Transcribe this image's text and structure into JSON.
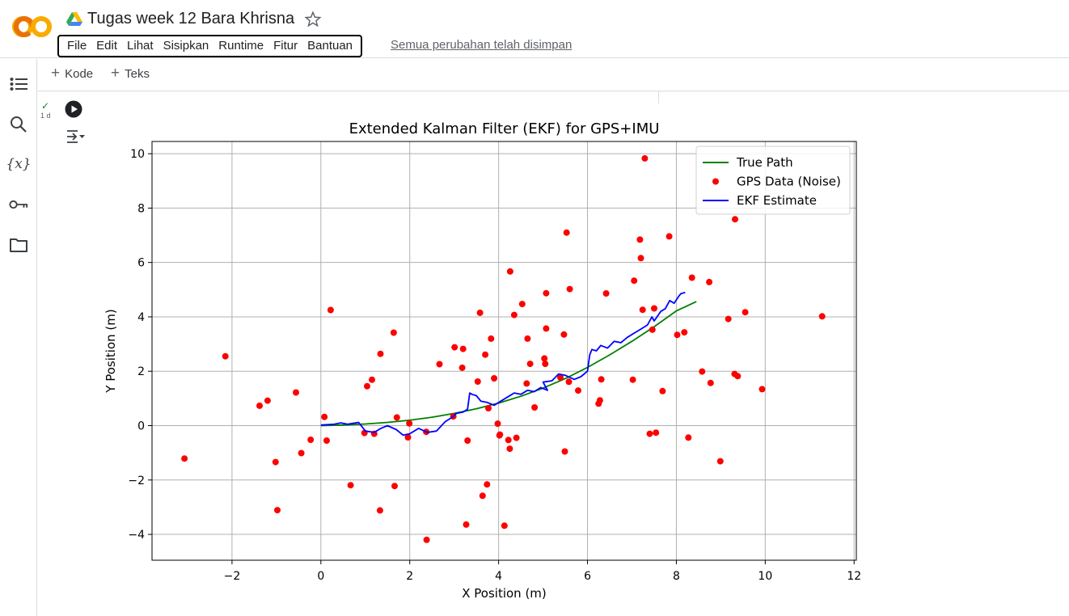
{
  "header": {
    "title": "Tugas week 12 Bara Khrisna",
    "logo": "colab-logo",
    "menu": [
      "File",
      "Edit",
      "Lihat",
      "Sisipkan",
      "Runtime",
      "Fitur",
      "Bantuan"
    ],
    "save_status": "Semua perubahan telah disimpan"
  },
  "sidebar": {
    "icons": [
      "table-of-contents-icon",
      "search-icon",
      "variables-icon",
      "secrets-key-icon",
      "files-folder-icon"
    ],
    "variables_glyph": "{x}"
  },
  "toolbar": {
    "add_code_label": "Kode",
    "add_text_label": "Teks"
  },
  "cell": {
    "status_check": "✓",
    "exec_time": "1 d"
  },
  "colors": {
    "true_path": "#008000",
    "gps": "#ff0000",
    "ekf": "#0000ff",
    "grid": "#b0b0b0",
    "colab_orange": "#f9ab00"
  },
  "chart_data": {
    "type": "scatter",
    "title": "Extended Kalman Filter (EKF) for GPS+IMU",
    "xlabel": "X Position (m)",
    "ylabel": "Y Position (m)",
    "xlim": [
      -3.8,
      12.05
    ],
    "ylim": [
      -4.95,
      10.45
    ],
    "xticks": [
      -2,
      0,
      2,
      4,
      6,
      8,
      10,
      12
    ],
    "yticks": [
      -4,
      -2,
      0,
      2,
      4,
      6,
      8,
      10
    ],
    "xtick_labels": [
      "−2",
      "0",
      "2",
      "4",
      "6",
      "8",
      "10",
      "12"
    ],
    "ytick_labels": [
      "−4",
      "−2",
      "0",
      "2",
      "4",
      "6",
      "8",
      "10"
    ],
    "grid": true,
    "legend_position": "top-right",
    "series": [
      {
        "name": "True Path",
        "kind": "line",
        "x": [
          0,
          0.5,
          1,
          1.5,
          2,
          2.5,
          3,
          3.5,
          4,
          4.5,
          5,
          5.5,
          6,
          6.5,
          7,
          7.5,
          8,
          8.45
        ],
        "y": [
          0,
          0.02,
          0.06,
          0.12,
          0.2,
          0.31,
          0.45,
          0.62,
          0.83,
          1.08,
          1.38,
          1.73,
          2.14,
          2.6,
          3.1,
          3.64,
          4.22,
          4.56
        ]
      },
      {
        "name": "GPS Data (Noise)",
        "kind": "scatter",
        "x": [
          -3.07,
          -2.15,
          -1.38,
          -1.2,
          -1.02,
          -0.98,
          -0.56,
          -0.44,
          -0.23,
          0.08,
          0.13,
          0.22,
          0.67,
          0.98,
          1.04,
          1.15,
          1.2,
          1.33,
          1.34,
          1.64,
          1.66,
          1.71,
          1.96,
          1.99,
          2.37,
          2.38,
          2.67,
          2.98,
          3.01,
          3.18,
          3.2,
          3.27,
          3.3,
          3.53,
          3.58,
          3.64,
          3.7,
          3.74,
          3.77,
          3.83,
          3.9,
          3.98,
          4.02,
          4.03,
          4.13,
          4.22,
          4.25,
          4.26,
          4.35,
          4.4,
          4.53,
          4.63,
          4.65,
          4.71,
          4.81,
          5.03,
          5.05,
          5.07,
          5.07,
          5.39,
          5.47,
          5.49,
          5.53,
          5.58,
          5.6,
          5.79,
          6.25,
          6.28,
          6.31,
          6.42,
          7.02,
          7.05,
          7.18,
          7.2,
          7.24,
          7.29,
          7.4,
          7.46,
          7.5,
          7.54,
          7.69,
          7.84,
          8.02,
          8.18,
          8.27,
          8.35,
          8.58,
          8.74,
          8.77,
          8.99,
          9.17,
          9.31,
          9.32,
          9.38,
          9.55,
          9.93,
          11.28
        ],
        "y": [
          -1.21,
          2.55,
          0.73,
          0.92,
          -1.34,
          -3.11,
          1.22,
          -1.01,
          -0.52,
          0.32,
          -0.55,
          4.25,
          -2.19,
          -0.27,
          1.45,
          1.69,
          -0.3,
          -3.12,
          2.64,
          3.42,
          -2.22,
          0.3,
          -0.43,
          0.08,
          -0.23,
          -4.2,
          2.26,
          0.34,
          2.88,
          2.13,
          2.82,
          -3.64,
          -0.55,
          1.62,
          4.15,
          -2.58,
          2.61,
          -2.16,
          0.64,
          3.2,
          1.74,
          0.07,
          -0.36,
          -0.33,
          -3.68,
          -0.53,
          -0.85,
          5.67,
          4.07,
          -0.45,
          4.47,
          1.55,
          3.2,
          2.27,
          0.67,
          2.47,
          2.27,
          3.57,
          4.87,
          1.77,
          3.35,
          -0.95,
          7.1,
          1.61,
          5.02,
          1.29,
          0.81,
          0.93,
          1.7,
          4.86,
          1.69,
          5.33,
          6.84,
          6.16,
          4.26,
          9.83,
          -0.3,
          3.53,
          4.31,
          -0.26,
          1.27,
          6.96,
          3.34,
          3.43,
          -0.44,
          5.44,
          1.99,
          5.28,
          1.57,
          -1.31,
          3.92,
          1.9,
          7.59,
          1.82,
          4.17,
          1.34,
          4.02
        ]
      },
      {
        "name": "EKF Estimate",
        "kind": "line",
        "x": [
          0,
          0.3,
          0.45,
          0.6,
          0.85,
          1.0,
          1.2,
          1.35,
          1.5,
          1.7,
          1.85,
          2.0,
          2.2,
          2.4,
          2.6,
          2.8,
          2.95,
          3.05,
          3.2,
          3.3,
          3.35,
          3.4,
          3.5,
          3.6,
          3.75,
          3.9,
          4.05,
          4.2,
          4.35,
          4.5,
          4.65,
          4.8,
          4.95,
          5.1,
          5.0,
          5.2,
          5.35,
          5.5,
          5.7,
          5.85,
          6.0,
          6.05,
          6.1,
          6.2,
          6.3,
          6.45,
          6.6,
          6.75,
          6.9,
          7.05,
          7.2,
          7.35,
          7.45,
          7.5,
          7.65,
          7.75,
          7.85,
          7.95,
          8.05,
          8.1,
          8.2
        ],
        "y": [
          0.02,
          0.05,
          0.1,
          0.05,
          0.12,
          -0.2,
          -0.25,
          -0.1,
          0.0,
          -0.15,
          -0.35,
          -0.3,
          -0.1,
          -0.25,
          -0.2,
          0.15,
          0.3,
          0.45,
          0.5,
          0.6,
          1.2,
          1.15,
          1.1,
          0.9,
          0.85,
          0.75,
          0.9,
          1.05,
          1.2,
          1.15,
          1.3,
          1.25,
          1.4,
          1.3,
          1.6,
          1.65,
          1.9,
          1.85,
          1.7,
          1.8,
          2.0,
          2.6,
          2.8,
          2.75,
          2.95,
          2.85,
          3.1,
          3.05,
          3.25,
          3.4,
          3.55,
          3.7,
          4.0,
          3.85,
          4.2,
          4.3,
          4.6,
          4.5,
          4.75,
          4.85,
          4.9
        ]
      }
    ]
  }
}
